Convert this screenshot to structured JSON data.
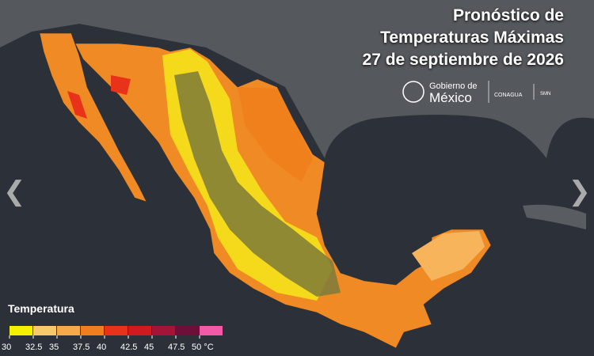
{
  "header": {
    "title_lines": [
      "Pronóstico de",
      "Temperaturas Máximas",
      "27 de septiembre de 2026"
    ]
  },
  "logos": {
    "gobierno_top": "Gobierno de",
    "gobierno_bottom": "México",
    "conagua": "CONAGUA",
    "smn": "SMN"
  },
  "legend": {
    "title": "Temperatura",
    "ticks": [
      30,
      32.5,
      35,
      37.5,
      40,
      42.5,
      45,
      47.5,
      {
        "value": 50,
        "label": "50 °C"
      }
    ],
    "colors": [
      "#f4f000",
      "#f6c96a",
      "#f6a94a",
      "#f07d1e",
      "#e8321a",
      "#cf1a1f",
      "#a31438",
      "#6e0f3a",
      "#f25aa8"
    ]
  }
}
